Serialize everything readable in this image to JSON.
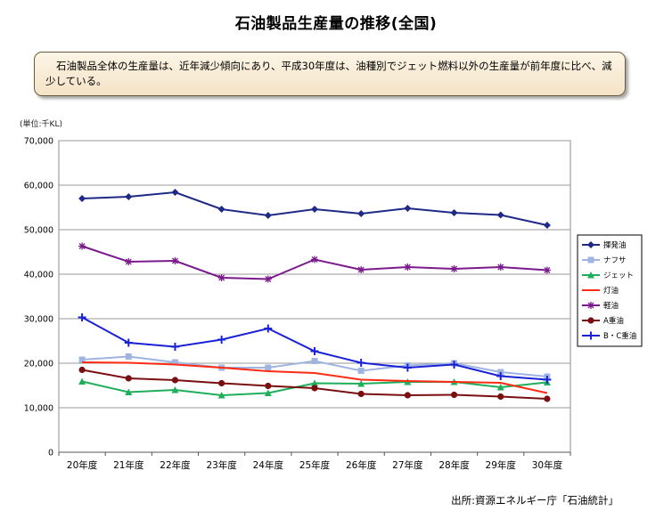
{
  "header": {
    "title": "石油製品生産量の推移(全国)",
    "summary": "石油製品全体の生産量は、近年減少傾向にあり、平成30年度は、油種別でジェット燃料以外の生産量が前年度に比べ、減少している。"
  },
  "unit_label": "(単位:千KL)",
  "source": "出所:資源エネルギー庁「石油統計」",
  "chart_data": {
    "type": "line",
    "title": "石油製品生産量の推移(全国)",
    "xlabel": "",
    "ylabel": "千KL",
    "ylim": [
      0,
      70000
    ],
    "yticks": [
      0,
      10000,
      20000,
      30000,
      40000,
      50000,
      60000,
      70000
    ],
    "ytick_labels": [
      "0",
      "10,000",
      "20,000",
      "30,000",
      "40,000",
      "50,000",
      "60,000",
      "70,000"
    ],
    "grid": true,
    "legend_position": "right",
    "categories": [
      "20年度",
      "21年度",
      "22年度",
      "23年度",
      "24年度",
      "25年度",
      "26年度",
      "27年度",
      "28年度",
      "29年度",
      "30年度"
    ],
    "series": [
      {
        "name": "揮発油",
        "color": "#1f2a87",
        "marker": "diamond",
        "values": [
          57000,
          57400,
          58400,
          54600,
          53200,
          54600,
          53600,
          54800,
          53800,
          53300,
          51000
        ]
      },
      {
        "name": "ナフサ",
        "color": "#9fb4e0",
        "marker": "square",
        "values": [
          20800,
          21500,
          20200,
          19000,
          19000,
          20500,
          18300,
          19500,
          20000,
          18000,
          17000
        ]
      },
      {
        "name": "ジェット",
        "color": "#1fae5a",
        "marker": "triangle",
        "values": [
          15900,
          13500,
          14000,
          12800,
          13300,
          15500,
          15400,
          15800,
          15800,
          14600,
          15700
        ]
      },
      {
        "name": "灯油",
        "color": "#ff2a14",
        "marker": "none",
        "values": [
          20200,
          20100,
          19700,
          19000,
          18200,
          17800,
          16300,
          16000,
          15800,
          15600,
          13300
        ]
      },
      {
        "name": "軽油",
        "color": "#7b1a8c",
        "marker": "star",
        "values": [
          46300,
          42800,
          43000,
          39200,
          38900,
          43300,
          41000,
          41600,
          41200,
          41600,
          40900
        ]
      },
      {
        "name": "A重油",
        "color": "#7a0f12",
        "marker": "circle",
        "values": [
          18500,
          16600,
          16200,
          15500,
          14900,
          14400,
          13100,
          12800,
          12900,
          12500,
          12000
        ]
      },
      {
        "name": "B・C重油",
        "color": "#1a22d6",
        "marker": "plus",
        "values": [
          30300,
          24600,
          23700,
          25300,
          27800,
          22700,
          20100,
          19000,
          19700,
          17100,
          16300
        ]
      }
    ]
  }
}
